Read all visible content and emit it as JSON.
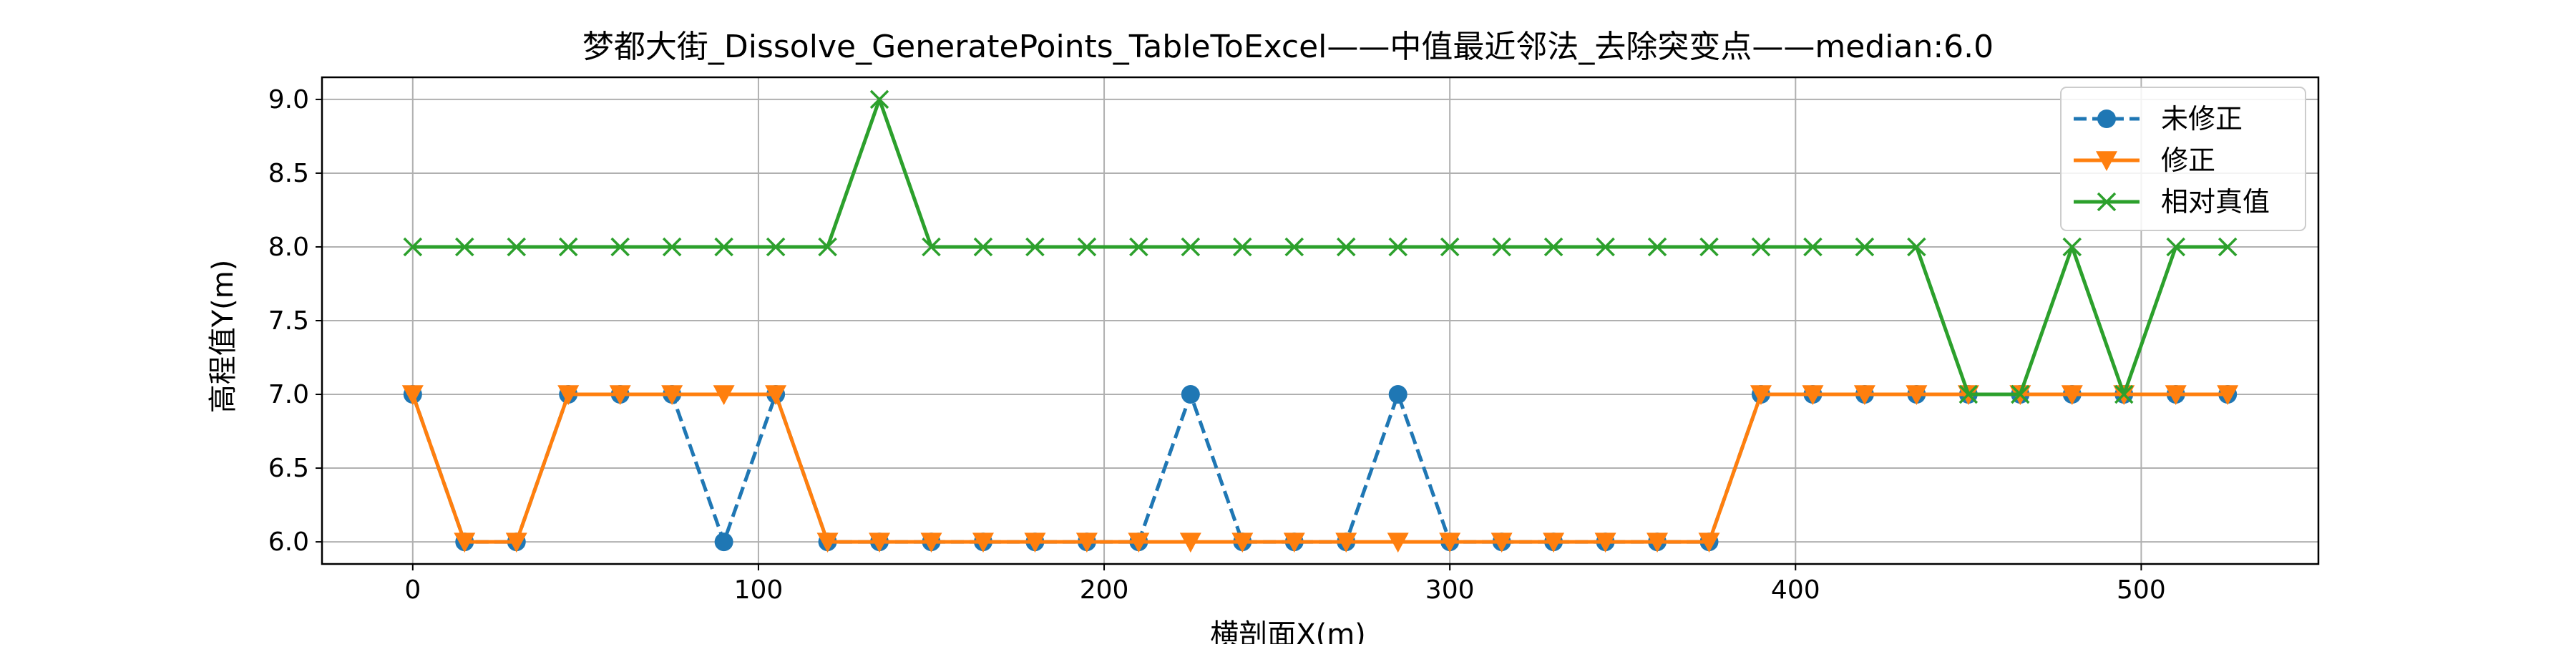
{
  "chart_data": {
    "type": "line",
    "title": "梦都大街_Dissolve_GeneratePoints_TableToExcel——中值最近邻法_去除突变点——median:6.0",
    "xlabel": "横剖面X(m)",
    "ylabel": "高程值Y(m)",
    "xlim": [
      -26.25,
      551.25
    ],
    "ylim": [
      5.85,
      9.15
    ],
    "xticks": [
      0,
      100,
      200,
      300,
      400,
      500
    ],
    "yticks": [
      6.0,
      6.5,
      7.0,
      7.5,
      8.0,
      8.5,
      9.0
    ],
    "ytick_labels": [
      "6.0",
      "6.5",
      "7.0",
      "7.5",
      "8.0",
      "8.5",
      "9.0"
    ],
    "grid": true,
    "legend_position": "top-right",
    "x": [
      0,
      15,
      30,
      45,
      60,
      75,
      90,
      105,
      120,
      135,
      150,
      165,
      180,
      195,
      210,
      225,
      240,
      255,
      270,
      285,
      300,
      315,
      330,
      345,
      360,
      375,
      390,
      405,
      420,
      435,
      450,
      465,
      480,
      495,
      510,
      525
    ],
    "series": [
      {
        "name": "未修正",
        "color": "#1f77b4",
        "line_style": "dashed",
        "marker": "circle",
        "values": [
          7,
          6,
          6,
          7,
          7,
          7,
          6,
          7,
          6,
          6,
          6,
          6,
          6,
          6,
          6,
          7,
          6,
          6,
          6,
          7,
          6,
          6,
          6,
          6,
          6,
          6,
          7,
          7,
          7,
          7,
          7,
          7,
          7,
          7,
          7,
          7
        ]
      },
      {
        "name": "修正",
        "color": "#ff7f0e",
        "line_style": "solid",
        "marker": "triangle-down",
        "values": [
          7,
          6,
          6,
          7,
          7,
          7,
          7,
          7,
          6,
          6,
          6,
          6,
          6,
          6,
          6,
          6,
          6,
          6,
          6,
          6,
          6,
          6,
          6,
          6,
          6,
          6,
          7,
          7,
          7,
          7,
          7,
          7,
          7,
          7,
          7,
          7
        ]
      },
      {
        "name": "相对真值",
        "color": "#2ca02c",
        "line_style": "solid",
        "marker": "x",
        "values": [
          8,
          8,
          8,
          8,
          8,
          8,
          8,
          8,
          8,
          9,
          8,
          8,
          8,
          8,
          8,
          8,
          8,
          8,
          8,
          8,
          8,
          8,
          8,
          8,
          8,
          8,
          8,
          8,
          8,
          8,
          7,
          7,
          8,
          7,
          8,
          8
        ]
      }
    ]
  }
}
